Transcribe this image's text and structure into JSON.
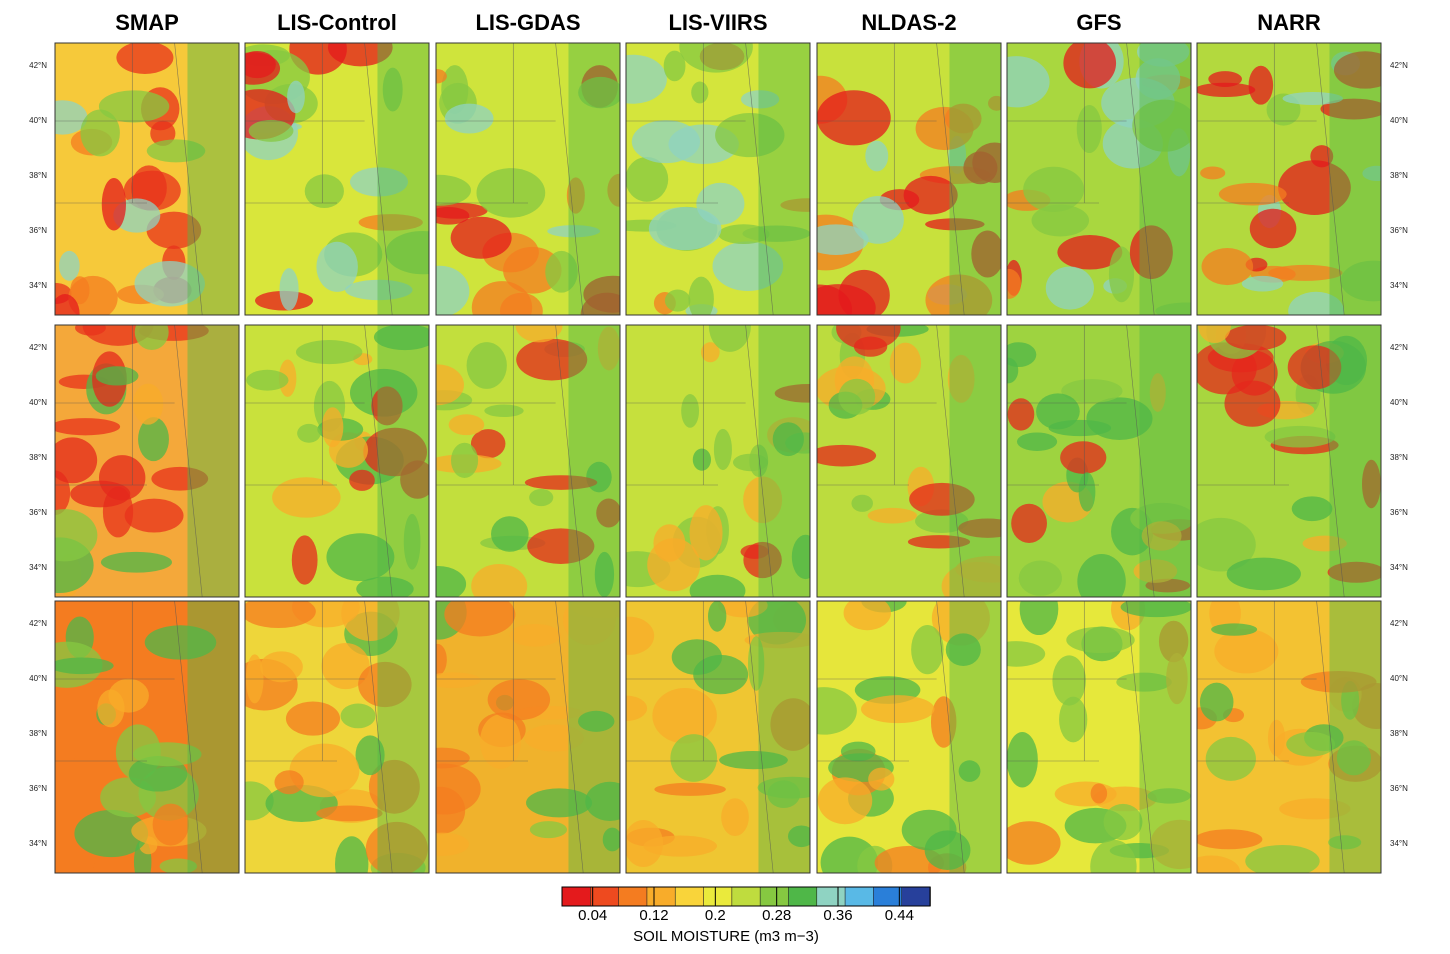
{
  "columns": [
    "SMAP",
    "LIS-Control",
    "LIS-GDAS",
    "LIS-VIIRS",
    "NLDAS-2",
    "GFS",
    "NARR"
  ],
  "latitudes": [
    "42°N",
    "40°N",
    "38°N",
    "36°N",
    "34°N"
  ],
  "colorbar": {
    "title": "SOIL MOISTURE (m3 m−3)",
    "lim": [
      0,
      0.48
    ],
    "ticks": [
      0.04,
      0.12,
      0.2,
      0.28,
      0.36,
      0.44
    ],
    "colors": [
      "#e41a1c",
      "#ee4a1f",
      "#f47c20",
      "#f8ac2a",
      "#f9d43a",
      "#eaea3c",
      "#bfdc3e",
      "#86c841",
      "#4fb748",
      "#8fd3c2",
      "#59b9e6",
      "#2a7fd9",
      "#27409b"
    ]
  }
}
